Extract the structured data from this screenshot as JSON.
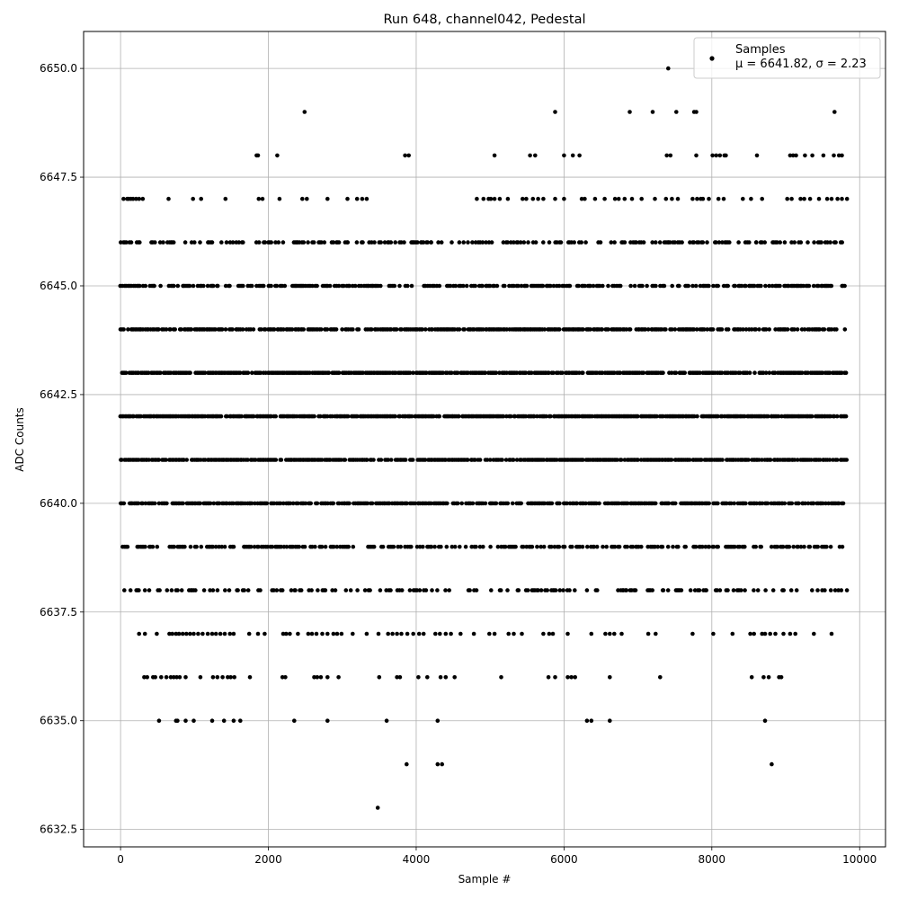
{
  "chart_data": {
    "type": "scatter",
    "title": "Run 648, channel042, Pedestal",
    "xlabel": "Sample #",
    "ylabel": "ADC Counts",
    "xlim": [
      -500,
      10350
    ],
    "ylim": [
      6632.1,
      6650.85
    ],
    "xticks": [
      0,
      2000,
      4000,
      6000,
      8000,
      10000
    ],
    "yticks": [
      6632.5,
      6635.0,
      6637.5,
      6640.0,
      6642.5,
      6645.0,
      6647.5,
      6650.0
    ],
    "xtick_labels": [
      "0",
      "2000",
      "4000",
      "6000",
      "8000",
      "10000"
    ],
    "ytick_labels": [
      "6632.5",
      "6635.0",
      "6637.5",
      "6640.0",
      "6642.5",
      "6645.0",
      "6647.5",
      "6650.0"
    ],
    "grid": true,
    "legend": {
      "placement": "upper-right",
      "line1": "Samples",
      "line2": "μ = 6641.82, σ = 2.23"
    },
    "color": "#000000",
    "series": [
      {
        "name": "Samples",
        "x_range": [
          0,
          9830
        ],
        "dense_levels": [
          {
            "y": 6638,
            "x_start": 30,
            "x_end": 9830,
            "density": 0.35
          },
          {
            "y": 6639,
            "x_start": 30,
            "x_end": 9830,
            "density": 0.5
          },
          {
            "y": 6640,
            "x_start": 0,
            "x_end": 9830,
            "density": 0.75
          },
          {
            "y": 6641,
            "x_start": 0,
            "x_end": 9830,
            "density": 0.85
          },
          {
            "y": 6642,
            "x_start": 0,
            "x_end": 9830,
            "density": 0.9
          },
          {
            "y": 6643,
            "x_start": 0,
            "x_end": 9830,
            "density": 0.85
          },
          {
            "y": 6644,
            "x_start": 0,
            "x_end": 9830,
            "density": 0.75
          },
          {
            "y": 6645,
            "x_start": 0,
            "x_end": 9830,
            "density": 0.55
          },
          {
            "y": 6646,
            "x_start": 0,
            "x_end": 9830,
            "density": 0.4
          }
        ],
        "points": [
          [
            3480,
            6633
          ],
          [
            3870,
            6634
          ],
          [
            4290,
            6634
          ],
          [
            4350,
            6634
          ],
          [
            8810,
            6634
          ],
          [
            520,
            6635
          ],
          [
            750,
            6635
          ],
          [
            770,
            6635
          ],
          [
            880,
            6635
          ],
          [
            990,
            6635
          ],
          [
            1240,
            6635
          ],
          [
            1400,
            6635
          ],
          [
            1530,
            6635
          ],
          [
            1620,
            6635
          ],
          [
            2350,
            6635
          ],
          [
            2800,
            6635
          ],
          [
            3600,
            6635
          ],
          [
            4290,
            6635
          ],
          [
            6310,
            6635
          ],
          [
            6370,
            6635
          ],
          [
            6620,
            6635
          ],
          [
            8720,
            6635
          ],
          [
            320,
            6636
          ],
          [
            360,
            6636
          ],
          [
            440,
            6636
          ],
          [
            470,
            6636
          ],
          [
            550,
            6636
          ],
          [
            620,
            6636
          ],
          [
            680,
            6636
          ],
          [
            720,
            6636
          ],
          [
            760,
            6636
          ],
          [
            800,
            6636
          ],
          [
            880,
            6636
          ],
          [
            1080,
            6636
          ],
          [
            1250,
            6636
          ],
          [
            1310,
            6636
          ],
          [
            1380,
            6636
          ],
          [
            1450,
            6636
          ],
          [
            1490,
            6636
          ],
          [
            1540,
            6636
          ],
          [
            1750,
            6636
          ],
          [
            2190,
            6636
          ],
          [
            2230,
            6636
          ],
          [
            2620,
            6636
          ],
          [
            2660,
            6636
          ],
          [
            2710,
            6636
          ],
          [
            2800,
            6636
          ],
          [
            2950,
            6636
          ],
          [
            3500,
            6636
          ],
          [
            3740,
            6636
          ],
          [
            3780,
            6636
          ],
          [
            4030,
            6636
          ],
          [
            4150,
            6636
          ],
          [
            4330,
            6636
          ],
          [
            4400,
            6636
          ],
          [
            4520,
            6636
          ],
          [
            5150,
            6636
          ],
          [
            5790,
            6636
          ],
          [
            5880,
            6636
          ],
          [
            6050,
            6636
          ],
          [
            6100,
            6636
          ],
          [
            6150,
            6636
          ],
          [
            6620,
            6636
          ],
          [
            7300,
            6636
          ],
          [
            8540,
            6636
          ],
          [
            8700,
            6636
          ],
          [
            8770,
            6636
          ],
          [
            8910,
            6636
          ],
          [
            8940,
            6636
          ],
          [
            250,
            6637
          ],
          [
            330,
            6637
          ],
          [
            490,
            6637
          ],
          [
            660,
            6637
          ],
          [
            700,
            6637
          ],
          [
            750,
            6637
          ],
          [
            790,
            6637
          ],
          [
            840,
            6637
          ],
          [
            890,
            6637
          ],
          [
            940,
            6637
          ],
          [
            990,
            6637
          ],
          [
            1050,
            6637
          ],
          [
            1110,
            6637
          ],
          [
            1180,
            6637
          ],
          [
            1240,
            6637
          ],
          [
            1290,
            6637
          ],
          [
            1350,
            6637
          ],
          [
            1410,
            6637
          ],
          [
            1480,
            6637
          ],
          [
            1530,
            6637
          ],
          [
            1740,
            6637
          ],
          [
            1860,
            6637
          ],
          [
            1950,
            6637
          ],
          [
            2200,
            6637
          ],
          [
            2240,
            6637
          ],
          [
            2290,
            6637
          ],
          [
            2400,
            6637
          ],
          [
            2540,
            6637
          ],
          [
            2590,
            6637
          ],
          [
            2650,
            6637
          ],
          [
            2730,
            6637
          ],
          [
            2800,
            6637
          ],
          [
            2880,
            6637
          ],
          [
            2930,
            6637
          ],
          [
            2990,
            6637
          ],
          [
            3140,
            6637
          ],
          [
            3330,
            6637
          ],
          [
            3490,
            6637
          ],
          [
            3620,
            6637
          ],
          [
            3680,
            6637
          ],
          [
            3740,
            6637
          ],
          [
            3800,
            6637
          ],
          [
            3880,
            6637
          ],
          [
            3960,
            6637
          ],
          [
            4040,
            6637
          ],
          [
            4100,
            6637
          ],
          [
            4260,
            6637
          ],
          [
            4320,
            6637
          ],
          [
            4400,
            6637
          ],
          [
            4470,
            6637
          ],
          [
            4600,
            6637
          ],
          [
            4780,
            6637
          ],
          [
            4990,
            6637
          ],
          [
            5060,
            6637
          ],
          [
            5250,
            6637
          ],
          [
            5320,
            6637
          ],
          [
            5430,
            6637
          ],
          [
            5720,
            6637
          ],
          [
            5800,
            6637
          ],
          [
            5850,
            6637
          ],
          [
            6050,
            6637
          ],
          [
            6370,
            6637
          ],
          [
            6560,
            6637
          ],
          [
            6620,
            6637
          ],
          [
            6680,
            6637
          ],
          [
            6780,
            6637
          ],
          [
            7140,
            6637
          ],
          [
            7240,
            6637
          ],
          [
            7740,
            6637
          ],
          [
            8020,
            6637
          ],
          [
            8280,
            6637
          ],
          [
            8520,
            6637
          ],
          [
            8570,
            6637
          ],
          [
            8680,
            6637
          ],
          [
            8720,
            6637
          ],
          [
            8790,
            6637
          ],
          [
            8860,
            6637
          ],
          [
            8970,
            6637
          ],
          [
            9060,
            6637
          ],
          [
            9130,
            6637
          ],
          [
            9380,
            6637
          ],
          [
            9620,
            6637
          ],
          [
            3630,
            6646
          ],
          [
            3950,
            6646
          ],
          [
            4200,
            6646
          ],
          [
            4300,
            6646
          ],
          [
            8480,
            6646
          ],
          [
            8600,
            6646
          ],
          [
            40,
            6647
          ],
          [
            90,
            6647
          ],
          [
            110,
            6647
          ],
          [
            140,
            6647
          ],
          [
            170,
            6647
          ],
          [
            210,
            6647
          ],
          [
            250,
            6647
          ],
          [
            300,
            6647
          ],
          [
            650,
            6647
          ],
          [
            980,
            6647
          ],
          [
            1090,
            6647
          ],
          [
            1420,
            6647
          ],
          [
            1870,
            6647
          ],
          [
            1920,
            6647
          ],
          [
            2150,
            6647
          ],
          [
            2460,
            6647
          ],
          [
            2520,
            6647
          ],
          [
            2800,
            6647
          ],
          [
            3070,
            6647
          ],
          [
            3200,
            6647
          ],
          [
            3270,
            6647
          ],
          [
            3330,
            6647
          ],
          [
            4820,
            6647
          ],
          [
            4910,
            6647
          ],
          [
            4980,
            6647
          ],
          [
            5010,
            6647
          ],
          [
            5060,
            6647
          ],
          [
            5130,
            6647
          ],
          [
            5240,
            6647
          ],
          [
            5440,
            6647
          ],
          [
            5490,
            6647
          ],
          [
            5580,
            6647
          ],
          [
            5650,
            6647
          ],
          [
            5720,
            6647
          ],
          [
            5880,
            6647
          ],
          [
            6000,
            6647
          ],
          [
            6240,
            6647
          ],
          [
            6280,
            6647
          ],
          [
            6420,
            6647
          ],
          [
            6550,
            6647
          ],
          [
            6690,
            6647
          ],
          [
            6740,
            6647
          ],
          [
            6820,
            6647
          ],
          [
            6920,
            6647
          ],
          [
            7050,
            6647
          ],
          [
            7230,
            6647
          ],
          [
            7380,
            6647
          ],
          [
            7460,
            6647
          ],
          [
            7540,
            6647
          ],
          [
            7740,
            6647
          ],
          [
            7800,
            6647
          ],
          [
            7850,
            6647
          ],
          [
            7880,
            6647
          ],
          [
            7960,
            6647
          ],
          [
            8090,
            6647
          ],
          [
            8160,
            6647
          ],
          [
            8420,
            6647
          ],
          [
            8530,
            6647
          ],
          [
            8680,
            6647
          ],
          [
            9020,
            6647
          ],
          [
            9080,
            6647
          ],
          [
            9200,
            6647
          ],
          [
            9250,
            6647
          ],
          [
            9330,
            6647
          ],
          [
            9450,
            6647
          ],
          [
            9560,
            6647
          ],
          [
            9620,
            6647
          ],
          [
            9700,
            6647
          ],
          [
            9760,
            6647
          ],
          [
            9830,
            6647
          ],
          [
            1840,
            6648
          ],
          [
            1860,
            6648
          ],
          [
            2120,
            6648
          ],
          [
            3850,
            6648
          ],
          [
            3900,
            6648
          ],
          [
            5060,
            6648
          ],
          [
            5540,
            6648
          ],
          [
            5610,
            6648
          ],
          [
            6000,
            6648
          ],
          [
            6120,
            6648
          ],
          [
            6210,
            6648
          ],
          [
            7390,
            6648
          ],
          [
            7440,
            6648
          ],
          [
            7790,
            6648
          ],
          [
            8010,
            6648
          ],
          [
            8060,
            6648
          ],
          [
            8110,
            6648
          ],
          [
            8170,
            6648
          ],
          [
            8190,
            6648
          ],
          [
            8610,
            6648
          ],
          [
            9060,
            6648
          ],
          [
            9100,
            6648
          ],
          [
            9140,
            6648
          ],
          [
            9260,
            6648
          ],
          [
            9360,
            6648
          ],
          [
            9510,
            6648
          ],
          [
            9650,
            6648
          ],
          [
            9720,
            6648
          ],
          [
            9760,
            6648
          ],
          [
            2490,
            6649
          ],
          [
            5880,
            6649
          ],
          [
            6890,
            6649
          ],
          [
            7200,
            6649
          ],
          [
            7520,
            6649
          ],
          [
            7760,
            6649
          ],
          [
            7790,
            6649
          ],
          [
            9660,
            6649
          ],
          [
            7410,
            6650
          ]
        ]
      }
    ]
  }
}
